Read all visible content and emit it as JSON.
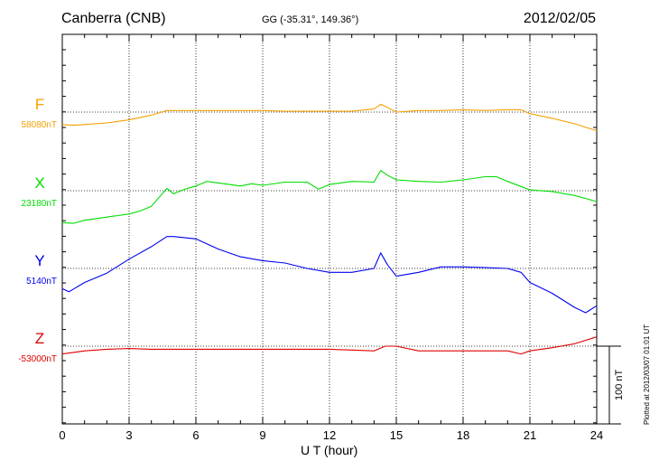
{
  "header": {
    "station": "Canberra (CNB)",
    "coords": "GG (-35.31°, 149.36°)",
    "date": "2012/02/05"
  },
  "footer": {
    "xlabel": "U T (hour)",
    "plotted": "Plotted at 2012/03/07 01:01 UT",
    "scale": "100 nT"
  },
  "chart_data": {
    "type": "line",
    "xlabel": "U T (hour)",
    "xlim": [
      0,
      24
    ],
    "xticks": [
      0,
      3,
      6,
      9,
      12,
      15,
      18,
      21,
      24
    ],
    "grid": true,
    "scale_bar_nT": 100,
    "series": [
      {
        "name": "F",
        "baseline": "58080nT",
        "color": "#f5a000",
        "x": [
          0,
          0.5,
          1,
          2,
          3,
          4,
          4.7,
          5,
          6,
          7,
          8,
          9,
          10,
          11,
          12,
          13,
          14,
          14.3,
          14.6,
          15,
          16,
          17,
          18,
          19,
          20,
          20.6,
          21,
          22,
          23,
          24
        ],
        "y": [
          -16,
          -17,
          -16,
          -14,
          -10,
          -4,
          2,
          2,
          2,
          2,
          2,
          2,
          1,
          1,
          1,
          1,
          4,
          10,
          6,
          0,
          2,
          2,
          3,
          2,
          3,
          3,
          -2,
          -8,
          -15,
          -24
        ]
      },
      {
        "name": "X",
        "baseline": "23180nT",
        "color": "#00dd00",
        "x": [
          0,
          0.5,
          1,
          2,
          3,
          3.5,
          4,
          4.7,
          5,
          5.5,
          6,
          6.5,
          7,
          8,
          8.5,
          9,
          10,
          11,
          11.5,
          12,
          13,
          14,
          14.3,
          14.6,
          15,
          16,
          17,
          18,
          19,
          19.5,
          20,
          21,
          22,
          23,
          24
        ],
        "y": [
          -41,
          -42,
          -38,
          -34,
          -30,
          -26,
          -20,
          3,
          -4,
          2,
          6,
          12,
          10,
          6,
          9,
          7,
          11,
          11,
          2,
          8,
          12,
          11,
          26,
          20,
          14,
          12,
          11,
          14,
          18,
          18,
          12,
          1,
          -1,
          -6,
          -14
        ]
      },
      {
        "name": "Y",
        "baseline": "5140nT",
        "color": "#0000ee",
        "x": [
          0,
          0.3,
          1,
          2,
          3,
          4,
          4.7,
          5,
          6,
          7,
          8,
          9,
          10,
          11,
          12,
          13,
          14,
          14.3,
          14.6,
          15,
          16,
          17,
          18,
          19,
          20,
          20.6,
          21,
          22,
          23,
          23.5,
          24
        ],
        "y": [
          -26,
          -30,
          -18,
          -6,
          12,
          28,
          41,
          41,
          38,
          25,
          15,
          10,
          7,
          0,
          -5,
          -5,
          0,
          20,
          5,
          -10,
          -5,
          2,
          2,
          1,
          0,
          -5,
          -18,
          -32,
          -50,
          -57,
          -48
        ]
      },
      {
        "name": "Z",
        "baseline": "-53000nT",
        "color": "#dd0000",
        "x": [
          0,
          0.5,
          1,
          2,
          3,
          4,
          5,
          6,
          7,
          8,
          9,
          10,
          11,
          12,
          13,
          14,
          14.5,
          15,
          16,
          17,
          18,
          19,
          20,
          20.6,
          21,
          22,
          23,
          24
        ],
        "y": [
          -10,
          -8,
          -6,
          -4,
          -3,
          -4,
          -4,
          -4,
          -4,
          -4,
          -4,
          -4,
          -4,
          -4,
          -5,
          -6,
          0,
          0,
          -6,
          -6,
          -6,
          -6,
          -6,
          -10,
          -6,
          -2,
          3,
          12
        ]
      }
    ]
  }
}
